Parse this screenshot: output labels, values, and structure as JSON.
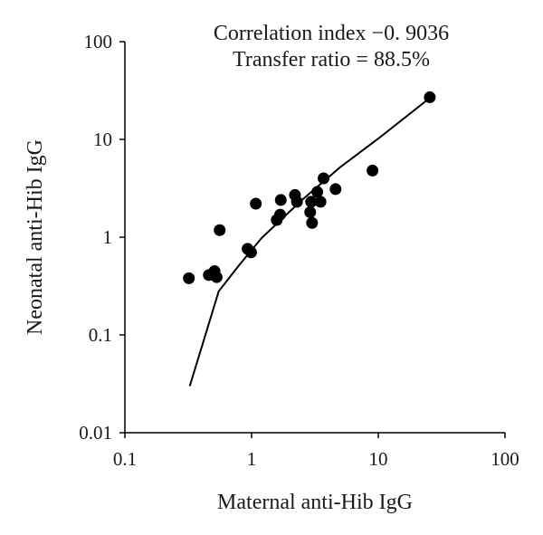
{
  "chart_data": {
    "type": "scatter",
    "x_scale": "log",
    "y_scale": "log",
    "xlim": [
      0.1,
      100
    ],
    "ylim": [
      0.01,
      100
    ],
    "xlabel": "Maternal anti-Hib IgG",
    "ylabel": "Neonatal anti-Hib IgG",
    "x_ticks": [
      {
        "value": 0.1,
        "label": "0.1"
      },
      {
        "value": 1,
        "label": "1"
      },
      {
        "value": 10,
        "label": "10"
      },
      {
        "value": 100,
        "label": "100"
      }
    ],
    "y_ticks": [
      {
        "value": 0.01,
        "label": "0.01"
      },
      {
        "value": 0.1,
        "label": "0.1"
      },
      {
        "value": 1,
        "label": "1"
      },
      {
        "value": 10,
        "label": "10"
      },
      {
        "value": 100,
        "label": "100"
      }
    ],
    "annotations": [
      "Correlation index −0. 9036",
      "Transfer ratio = 88.5%"
    ],
    "grid": false,
    "points": [
      {
        "x": 0.32,
        "y": 0.38
      },
      {
        "x": 0.46,
        "y": 0.41
      },
      {
        "x": 0.51,
        "y": 0.45
      },
      {
        "x": 0.53,
        "y": 0.39
      },
      {
        "x": 0.56,
        "y": 1.18
      },
      {
        "x": 0.93,
        "y": 0.76
      },
      {
        "x": 0.99,
        "y": 0.7
      },
      {
        "x": 1.08,
        "y": 2.2
      },
      {
        "x": 1.58,
        "y": 1.5
      },
      {
        "x": 1.68,
        "y": 1.7
      },
      {
        "x": 1.7,
        "y": 2.4
      },
      {
        "x": 2.2,
        "y": 2.7
      },
      {
        "x": 2.28,
        "y": 2.3
      },
      {
        "x": 2.9,
        "y": 1.8
      },
      {
        "x": 2.95,
        "y": 2.3
      },
      {
        "x": 3.0,
        "y": 1.4
      },
      {
        "x": 3.3,
        "y": 2.9
      },
      {
        "x": 3.5,
        "y": 2.3
      },
      {
        "x": 3.7,
        "y": 4.0
      },
      {
        "x": 4.6,
        "y": 3.1
      },
      {
        "x": 9.0,
        "y": 4.8
      },
      {
        "x": 25.5,
        "y": 27.0
      }
    ],
    "fit_line": [
      {
        "x": 0.325,
        "y": 0.03
      },
      {
        "x": 0.55,
        "y": 0.28
      },
      {
        "x": 0.8,
        "y": 0.52
      },
      {
        "x": 1.2,
        "y": 0.98
      },
      {
        "x": 2.5,
        "y": 2.4
      },
      {
        "x": 5.0,
        "y": 5.2
      },
      {
        "x": 10.0,
        "y": 10.2
      },
      {
        "x": 25.0,
        "y": 26.0
      }
    ],
    "marker_color": "#000000",
    "line_color": "#000000"
  }
}
